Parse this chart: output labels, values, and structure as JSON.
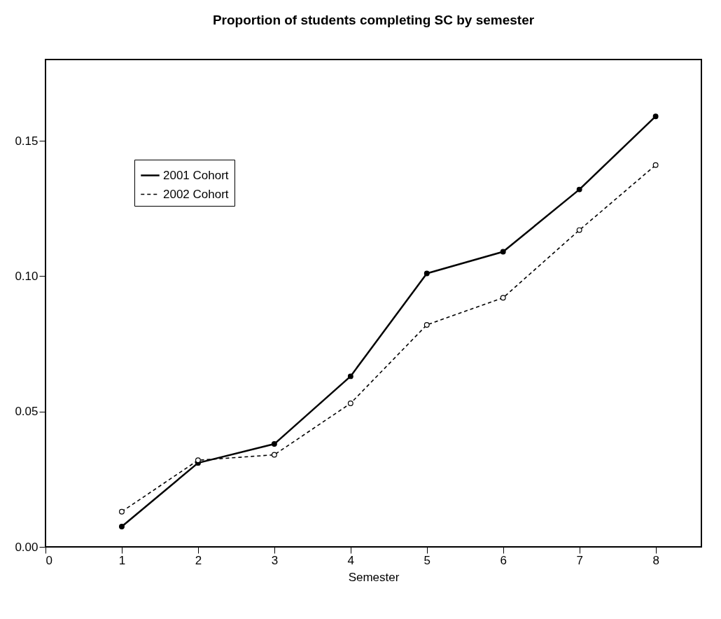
{
  "chart_data": {
    "type": "line",
    "title": "Proportion of students completing SC by semester",
    "xlabel": "Semester",
    "x": [
      1,
      2,
      3,
      4,
      5,
      6,
      7,
      8
    ],
    "series": [
      {
        "name": "2001 Cohort",
        "color": "#000000",
        "line_style": "solid",
        "values": [
          0.0075,
          0.031,
          0.038,
          0.063,
          0.101,
          0.109,
          0.132,
          0.159
        ]
      },
      {
        "name": "2002 Cohort",
        "color": "#000000",
        "line_style": "dashed",
        "values": [
          0.013,
          0.032,
          0.034,
          0.053,
          0.082,
          0.092,
          0.117,
          0.141
        ]
      }
    ],
    "xlim": [
      0,
      8.6
    ],
    "xticks": [
      0,
      1,
      2,
      3,
      4,
      5,
      6,
      7,
      8
    ],
    "ylim": [
      0,
      0.18
    ],
    "yticks": [
      {
        "value": 0,
        "label": "0.00"
      },
      {
        "value": 0.05,
        "label": "0.05"
      },
      {
        "value": 0.1,
        "label": "0.10"
      },
      {
        "value": 0.15,
        "label": "0.15"
      }
    ],
    "marker": "circle",
    "legend": "top left",
    "grid": false
  }
}
